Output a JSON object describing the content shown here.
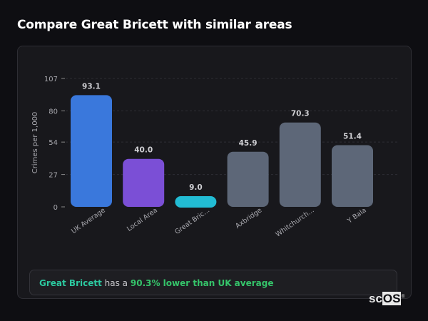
{
  "header": {
    "title": "Compare Great Bricett with similar areas"
  },
  "chart_data": {
    "type": "bar",
    "ylabel": "Crimes per 1,000",
    "ylim": [
      0,
      107
    ],
    "yticks": [
      0,
      27,
      54,
      80,
      107
    ],
    "categories": [
      "UK Average",
      "Local Area",
      "Great Bric...",
      "Axbridge",
      "Whitchurch...",
      "Y Bala"
    ],
    "values": [
      93.1,
      40.0,
      9.0,
      45.9,
      70.3,
      51.4
    ],
    "value_labels": [
      "93.1",
      "40.0",
      "9.0",
      "45.9",
      "70.3",
      "51.4"
    ],
    "colors": [
      "#3a78dc",
      "#7b4fd6",
      "#22bcd4",
      "#5d6778",
      "#5d6778",
      "#5d6778"
    ],
    "grid": true
  },
  "summary": {
    "area": "Great Bricett",
    "mid": "has a",
    "comparison": "90.3% lower than UK average",
    "area_color": "#2cc9a0",
    "comparison_color": "#35c46a"
  },
  "logo": {
    "text1": "sc",
    "text2": "OS",
    "mark": "®"
  }
}
